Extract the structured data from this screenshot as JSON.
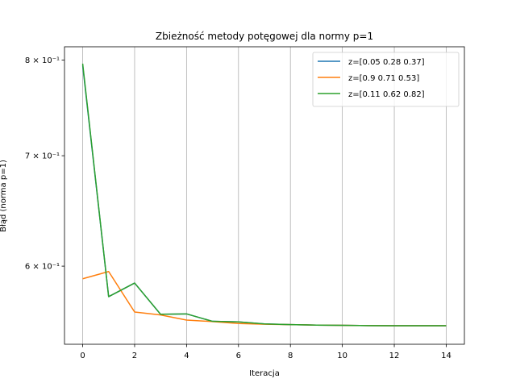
{
  "chart_data": {
    "type": "line",
    "title": "Zbieżność metody potęgowej dla normy p=1",
    "xlabel": "Iteracja",
    "ylabel": "Błąd (norma p=1)",
    "yscale": "log",
    "xlim": [
      -0.7,
      14.7
    ],
    "ylim": [
      0.538,
      0.815
    ],
    "x_ticks": [
      0,
      2,
      4,
      6,
      8,
      10,
      12,
      14
    ],
    "y_ticks": [
      {
        "value": 0.8,
        "label": "8 × 10⁻¹"
      },
      {
        "value": 0.7,
        "label": "7 × 10⁻¹"
      },
      {
        "value": 0.6,
        "label": "6 × 10⁻¹"
      }
    ],
    "grid": "x",
    "legend_position": "top-right",
    "x": [
      0,
      1,
      2,
      3,
      4,
      5,
      6,
      7,
      8,
      9,
      10,
      11,
      12,
      13,
      14
    ],
    "series": [
      {
        "name": "z=[0.05 0.28 0.37]",
        "color": "#1f77b4",
        "values": [
          0.794,
          0.575,
          0.586,
          0.561,
          0.5613,
          0.5555,
          0.5551,
          0.5535,
          0.553,
          0.5526,
          0.5524,
          0.5522,
          0.5521,
          0.5521,
          0.5521
        ]
      },
      {
        "name": "z=[0.9  0.71 0.53]",
        "color": "#ff7f0e",
        "values": [
          0.5895,
          0.5955,
          0.5628,
          0.5605,
          0.5565,
          0.5553,
          0.5538,
          0.5533,
          0.553,
          0.5526,
          0.5524,
          0.5522,
          0.5521,
          0.5521,
          0.5521
        ]
      },
      {
        "name": "z=[0.11 0.62 0.82]",
        "color": "#2ca02c",
        "values": [
          0.796,
          0.575,
          0.586,
          0.561,
          0.5613,
          0.5555,
          0.5551,
          0.5535,
          0.553,
          0.5526,
          0.5524,
          0.5522,
          0.5521,
          0.5521,
          0.5521
        ]
      }
    ]
  }
}
